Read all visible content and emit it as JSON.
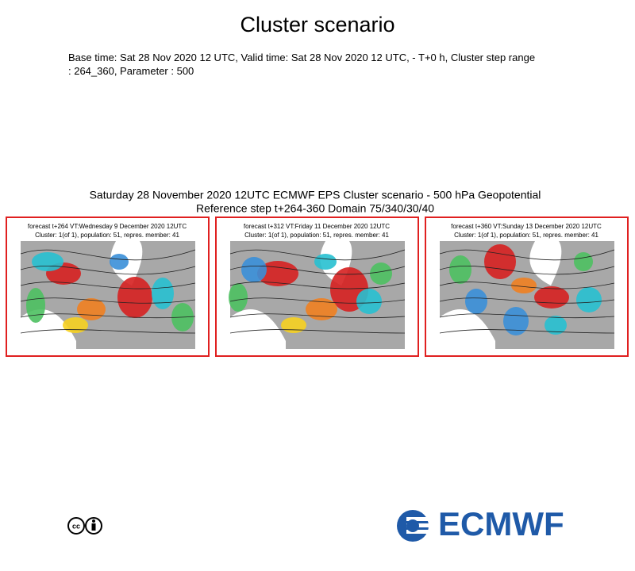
{
  "header": {
    "title": "Cluster scenario",
    "info": "Base time: Sat 28 Nov 2020 12 UTC, Valid time: Sat 28 Nov 2020 12 UTC, - T+0 h, Cluster step range : 264_360, Parameter : 500"
  },
  "figure": {
    "title_lines": [
      "Saturday 28 November 2020 12UTC ECMWF EPS Cluster scenario - 500 hPa Geopotential",
      "Reference step t+264-360 Domain 75/340/30/40"
    ],
    "panels": [
      {
        "lines": [
          "forecast t+264 VT:Wednesday 9 December 2020 12UTC",
          "Cluster: 1(of 1), population: 51, repres. member: 41"
        ]
      },
      {
        "lines": [
          "forecast t+312 VT:Friday 11 December 2020 12UTC",
          "Cluster: 1(of 1), population: 51, repres. member: 41"
        ]
      },
      {
        "lines": [
          "forecast t+360 VT:Sunday 13 December 2020 12UTC",
          "Cluster: 1(of 1), population: 51, repres. member: 41"
        ]
      }
    ]
  },
  "footer": {
    "logo": "ECMWF"
  }
}
